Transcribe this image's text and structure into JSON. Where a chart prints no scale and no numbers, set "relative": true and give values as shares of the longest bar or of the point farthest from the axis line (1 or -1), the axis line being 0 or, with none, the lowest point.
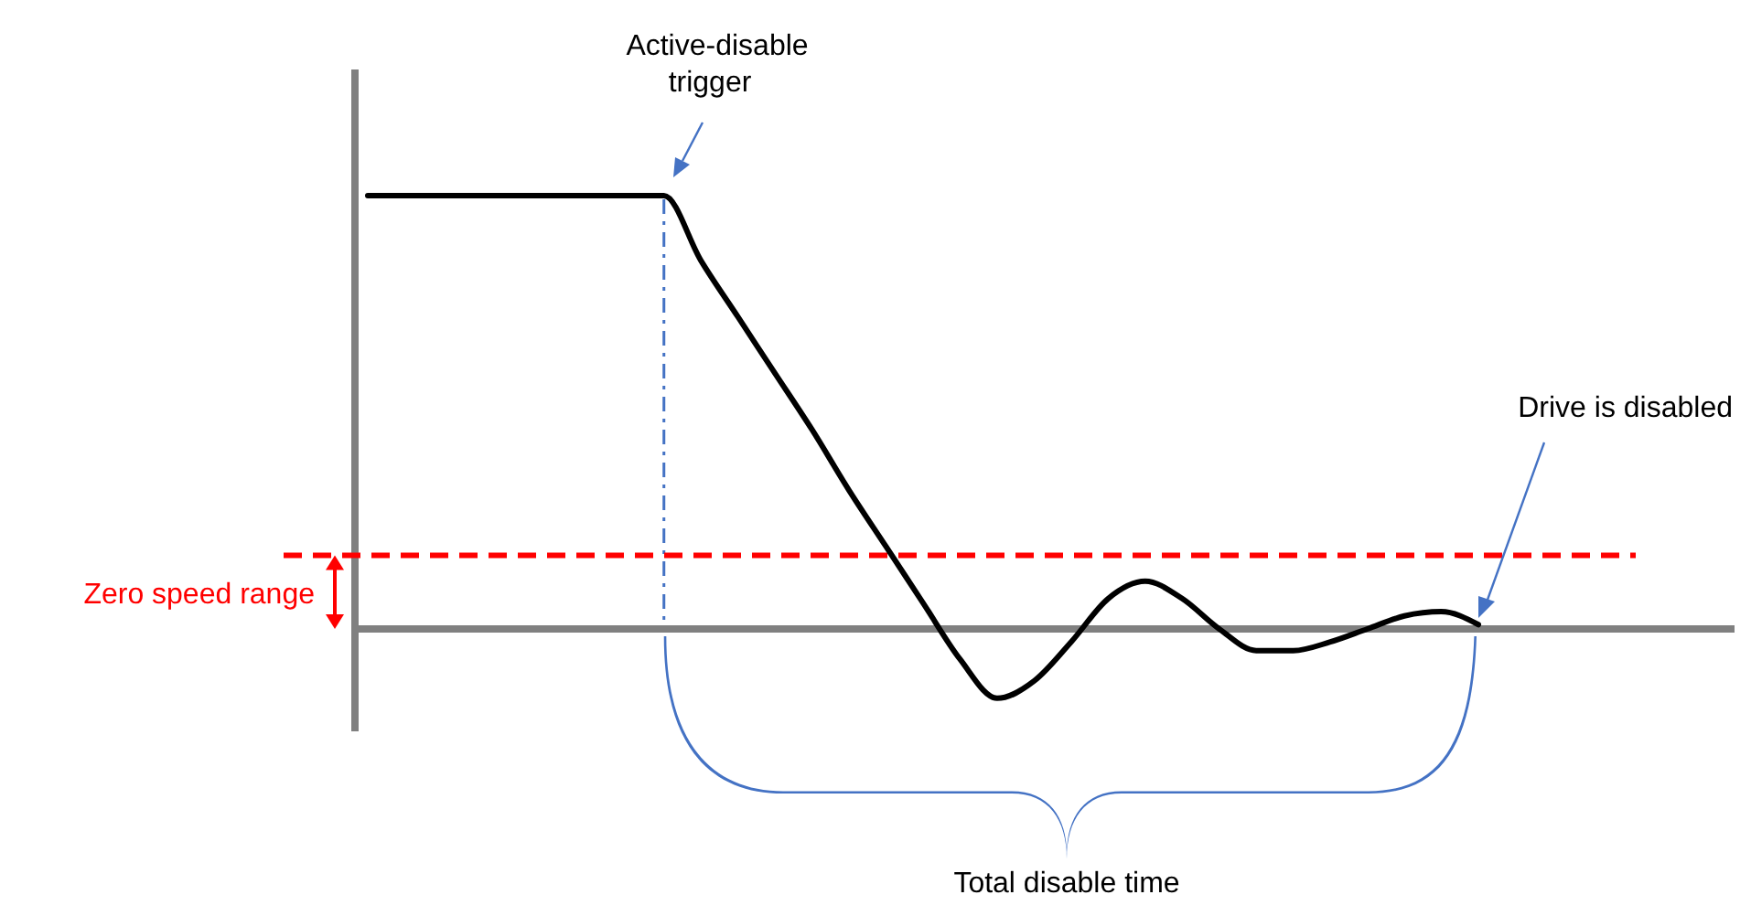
{
  "chart_data": {
    "type": "line",
    "relative": true,
    "categories": [
      null,
      null,
      null,
      null,
      null,
      null,
      null,
      null,
      null,
      null,
      null,
      null,
      null,
      null,
      null,
      null,
      null,
      null,
      null,
      null,
      null,
      null,
      null,
      null,
      null,
      null,
      null,
      null,
      null,
      null,
      null
    ],
    "series": [
      {
        "color": "#000000",
        "values": [
          1,
          1,
          1,
          1,
          1,
          1,
          1,
          1,
          1,
          0.85,
          0.72,
          0.59,
          0.46,
          0.32,
          0.19,
          0.06,
          -0.07,
          -0.16,
          -0.12,
          -0.03,
          0.07,
          0.11,
          0.07,
          0,
          -0.05,
          -0.05,
          -0.03,
          0,
          0.03,
          0.04,
          0.01
        ]
      }
    ],
    "ref_lines": [
      {
        "axis": "y",
        "value": 0.17,
        "label": "Zero speed range",
        "color": "#ff0000",
        "line_style": "dashed"
      }
    ],
    "annotations": [
      "Active-disable trigger",
      "Drive is disabled",
      "Total disable time"
    ],
    "marker": "none",
    "line_style": "solid"
  }
}
